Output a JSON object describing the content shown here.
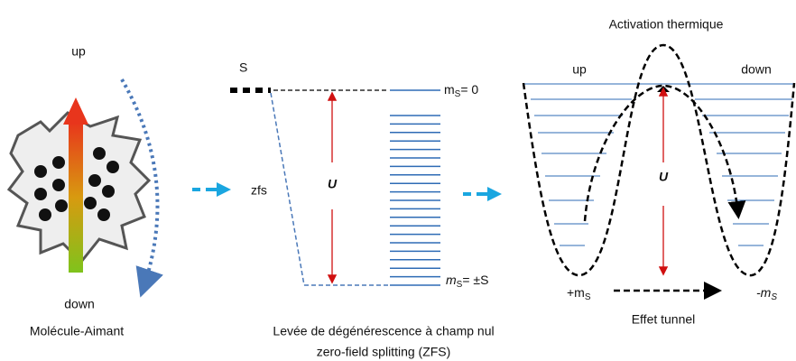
{
  "left": {
    "up": "up",
    "down": "down",
    "caption": "Molécule-Aimant"
  },
  "middle": {
    "S": "S",
    "zfs": "zfs",
    "U": "U",
    "top_level": {
      "base": "m",
      "sub": "S",
      "rest": "= 0"
    },
    "bottom_level": {
      "base": "m",
      "sub": "S",
      "rest": "= ±S"
    },
    "caption_1": "Levée de dégénérescence à champ nul",
    "caption_2": "zero-field splitting (ZFS)"
  },
  "right": {
    "title": "Activation thermique",
    "up": "up",
    "down": "down",
    "U": "U",
    "plus": {
      "base": "+m",
      "sub": "S"
    },
    "minus": {
      "base": "-m",
      "sub": "S"
    },
    "caption": "Effet tunnel"
  }
}
